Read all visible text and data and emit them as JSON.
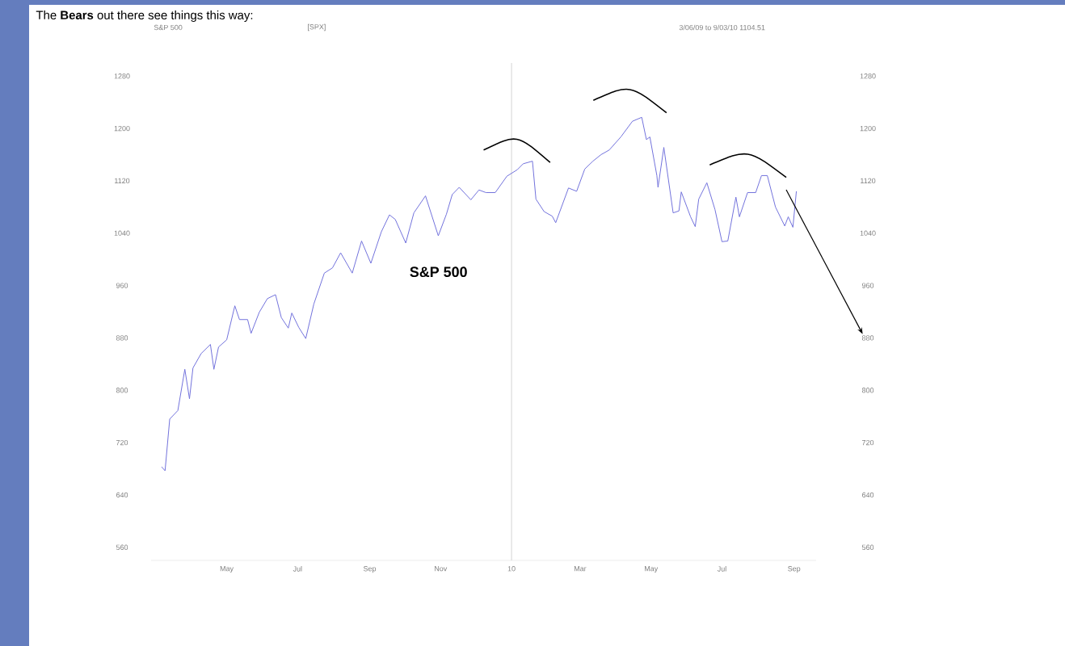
{
  "chart_data": {
    "type": "line",
    "title": "The **Bears** out there see things this way:",
    "annotations": [
      "S&P 500",
      "[SPX]",
      "3/06/09 to 9/03/10   1104.51"
    ],
    "x": [
      "2009-03-06",
      "2009-03-09",
      "2009-03-13",
      "2009-03-20",
      "2009-03-26",
      "2009-03-30",
      "2009-04-02",
      "2009-04-09",
      "2009-04-17",
      "2009-04-20",
      "2009-04-24",
      "2009-05-01",
      "2009-05-08",
      "2009-05-12",
      "2009-05-19",
      "2009-05-22",
      "2009-05-29",
      "2009-06-05",
      "2009-06-12",
      "2009-06-17",
      "2009-06-23",
      "2009-06-26",
      "2009-07-02",
      "2009-07-08",
      "2009-07-15",
      "2009-07-24",
      "2009-07-31",
      "2009-08-07",
      "2009-08-17",
      "2009-08-25",
      "2009-09-02",
      "2009-09-11",
      "2009-09-18",
      "2009-09-23",
      "2009-10-02",
      "2009-10-09",
      "2009-10-19",
      "2009-10-30",
      "2009-11-06",
      "2009-11-11",
      "2009-11-17",
      "2009-11-27",
      "2009-12-04",
      "2009-12-10",
      "2009-12-18",
      "2009-12-28",
      "2010-01-06",
      "2010-01-11",
      "2010-01-19",
      "2010-01-22",
      "2010-01-29",
      "2010-02-05",
      "2010-02-08",
      "2010-02-19",
      "2010-02-26",
      "2010-03-05",
      "2010-03-12",
      "2010-03-19",
      "2010-03-26",
      "2010-04-05",
      "2010-04-15",
      "2010-04-23",
      "2010-04-27",
      "2010-04-30",
      "2010-05-06",
      "2010-05-07",
      "2010-05-12",
      "2010-05-20",
      "2010-05-25",
      "2010-05-27",
      "2010-06-04",
      "2010-06-08",
      "2010-06-11",
      "2010-06-18",
      "2010-06-25",
      "2010-07-01",
      "2010-07-06",
      "2010-07-13",
      "2010-07-16",
      "2010-07-23",
      "2010-07-30",
      "2010-08-04",
      "2010-08-09",
      "2010-08-16",
      "2010-08-24",
      "2010-08-27",
      "2010-08-31",
      "2010-09-03"
    ],
    "series": [
      {
        "name": "S&P 500",
        "color": "#7272dc",
        "values": [
          683,
          677,
          756,
          769,
          832,
          787,
          834,
          856,
          870,
          832,
          866,
          877,
          929,
          908,
          908,
          887,
          919,
          940,
          946,
          911,
          895,
          918,
          896,
          879,
          932,
          979,
          987,
          1010,
          979,
          1028,
          994,
          1042,
          1068,
          1061,
          1025,
          1071,
          1097,
          1036,
          1069,
          1099,
          1110,
          1091,
          1106,
          1102,
          1102,
          1127,
          1137,
          1146,
          1150,
          1092,
          1073,
          1066,
          1056,
          1109,
          1104,
          1138,
          1150,
          1160,
          1167,
          1187,
          1211,
          1217,
          1183,
          1187,
          1128,
          1110,
          1171,
          1071,
          1074,
          1103,
          1065,
          1050,
          1092,
          1117,
          1076,
          1027,
          1028,
          1095,
          1065,
          1102,
          1102,
          1128,
          1128,
          1080,
          1051,
          1065,
          1049,
          1104
        ]
      }
    ],
    "xlim": [
      "2009-02-25",
      "2010-09-20"
    ],
    "xticks": [
      {
        "value": "2009-05-01",
        "label": "May"
      },
      {
        "value": "2009-07-01",
        "label": "Jul"
      },
      {
        "value": "2009-09-01",
        "label": "Sep"
      },
      {
        "value": "2009-11-01",
        "label": "Nov"
      },
      {
        "value": "2010-01-01",
        "label": "10"
      },
      {
        "value": "2010-03-01",
        "label": "Mar"
      },
      {
        "value": "2010-05-01",
        "label": "May"
      },
      {
        "value": "2010-07-01",
        "label": "Jul"
      },
      {
        "value": "2010-09-01",
        "label": "Sep"
      }
    ],
    "ylim": [
      540,
      1300
    ],
    "yticks": [
      560,
      640,
      720,
      800,
      880,
      960,
      1040,
      1120,
      1200,
      1280
    ],
    "y2lim": [
      540,
      1300
    ],
    "y2ticks": [
      560,
      640,
      720,
      800,
      880,
      960,
      1040,
      1120,
      1200,
      1280
    ],
    "ref_lines": [
      {
        "axis": "x",
        "value": "2010-01-01",
        "color": "#c8c8c8"
      }
    ],
    "grid": false,
    "marker": "none",
    "line_style": "solid"
  }
}
